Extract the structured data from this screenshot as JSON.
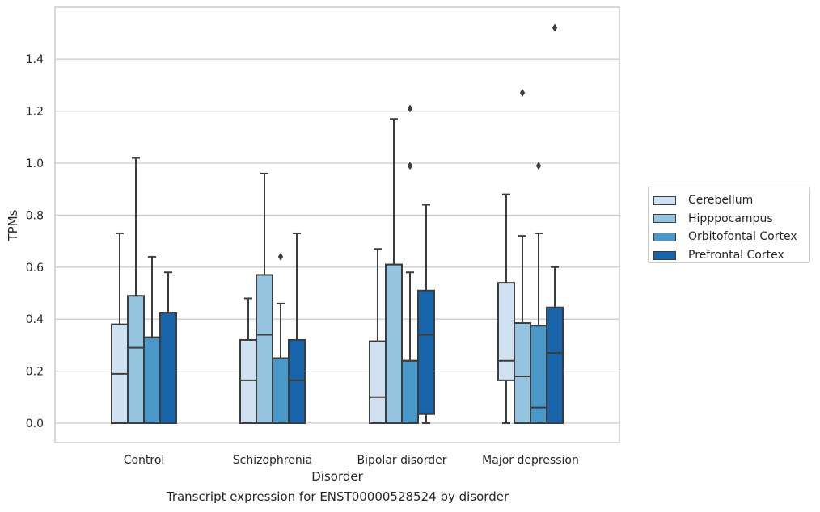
{
  "caption": "Transcript expression for ENST00000528524 by disorder",
  "chart_data": {
    "type": "box",
    "title": "",
    "xlabel": "Disorder",
    "ylabel": "TPMs",
    "ylim": [
      -0.07,
      1.6
    ],
    "yticks": [
      "0.0",
      "0.2",
      "0.4",
      "0.6",
      "0.8",
      "1.0",
      "1.2",
      "1.4"
    ],
    "ytick_values": [
      0.0,
      0.2,
      0.4,
      0.6,
      0.8,
      1.0,
      1.2,
      1.4
    ],
    "grid": "horizontal",
    "legend_position": "right",
    "categories": [
      "Control",
      "Schizophrenia",
      "Bipolar disorder",
      "Major depression"
    ],
    "series": [
      {
        "name": "Cerebellum",
        "color": "#d0e1f2",
        "boxes": [
          {
            "whisker_low": 0.0,
            "q1": 0.0,
            "median": 0.19,
            "q3": 0.38,
            "whisker_high": 0.73,
            "outliers": []
          },
          {
            "whisker_low": 0.0,
            "q1": 0.0,
            "median": 0.165,
            "q3": 0.32,
            "whisker_high": 0.48,
            "outliers": []
          },
          {
            "whisker_low": 0.0,
            "q1": 0.0,
            "median": 0.1,
            "q3": 0.315,
            "whisker_high": 0.67,
            "outliers": []
          },
          {
            "whisker_low": 0.0,
            "q1": 0.165,
            "median": 0.24,
            "q3": 0.54,
            "whisker_high": 0.88,
            "outliers": []
          }
        ]
      },
      {
        "name": "Hipppocampus",
        "color": "#94c4df",
        "boxes": [
          {
            "whisker_low": 0.0,
            "q1": 0.0,
            "median": 0.29,
            "q3": 0.49,
            "whisker_high": 1.02,
            "outliers": []
          },
          {
            "whisker_low": 0.0,
            "q1": 0.0,
            "median": 0.34,
            "q3": 0.57,
            "whisker_high": 0.96,
            "outliers": []
          },
          {
            "whisker_low": 0.0,
            "q1": 0.0,
            "median": 0.61,
            "q3": 0.61,
            "whisker_high": 1.17,
            "outliers": []
          },
          {
            "whisker_low": 0.0,
            "q1": 0.0,
            "median": 0.18,
            "q3": 0.385,
            "whisker_high": 0.72,
            "outliers": [
              1.27
            ]
          }
        ]
      },
      {
        "name": "Orbitofontal Cortex",
        "color": "#4a98c9",
        "boxes": [
          {
            "whisker_low": 0.0,
            "q1": 0.0,
            "median": 0.33,
            "q3": 0.33,
            "whisker_high": 0.64,
            "outliers": []
          },
          {
            "whisker_low": 0.0,
            "q1": 0.0,
            "median": 0.25,
            "q3": 0.25,
            "whisker_high": 0.46,
            "outliers": [
              0.64
            ]
          },
          {
            "whisker_low": 0.0,
            "q1": 0.0,
            "median": 0.24,
            "q3": 0.24,
            "whisker_high": 0.58,
            "outliers": [
              0.99,
              1.21
            ]
          },
          {
            "whisker_low": 0.0,
            "q1": 0.0,
            "median": 0.06,
            "q3": 0.375,
            "whisker_high": 0.73,
            "outliers": [
              0.99
            ]
          }
        ]
      },
      {
        "name": "Prefrontal Cortex",
        "color": "#1764ab",
        "boxes": [
          {
            "whisker_low": 0.0,
            "q1": 0.0,
            "median": 0.425,
            "q3": 0.425,
            "whisker_high": 0.58,
            "outliers": []
          },
          {
            "whisker_low": 0.0,
            "q1": 0.0,
            "median": 0.165,
            "q3": 0.32,
            "whisker_high": 0.73,
            "outliers": []
          },
          {
            "whisker_low": 0.0,
            "q1": 0.035,
            "median": 0.34,
            "q3": 0.51,
            "whisker_high": 0.84,
            "outliers": []
          },
          {
            "whisker_low": 0.0,
            "q1": 0.0,
            "median": 0.27,
            "q3": 0.445,
            "whisker_high": 0.6,
            "outliers": [
              1.52
            ]
          }
        ]
      }
    ]
  }
}
